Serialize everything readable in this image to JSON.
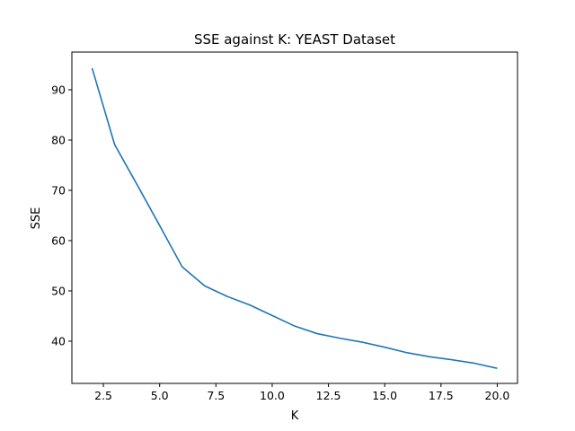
{
  "chart_data": {
    "type": "line",
    "title": "SSE against K: YEAST Dataset",
    "xlabel": "K",
    "ylabel": "SSE",
    "xlim": [
      1.1,
      20.9
    ],
    "ylim": [
      31.6,
      97.5
    ],
    "xticks": [
      2.5,
      5.0,
      7.5,
      10.0,
      12.5,
      15.0,
      17.5,
      20.0
    ],
    "xtick_labels": [
      "2.5",
      "5.0",
      "7.5",
      "10.0",
      "12.5",
      "15.0",
      "17.5",
      "20.0"
    ],
    "yticks": [
      40,
      50,
      60,
      70,
      80,
      90
    ],
    "ytick_labels": [
      "40",
      "50",
      "60",
      "70",
      "80",
      "90"
    ],
    "grid": false,
    "series": [
      {
        "color": "#1f77b4",
        "x": [
          2,
          3,
          4,
          5,
          6,
          7,
          8,
          9,
          10,
          11,
          12,
          13,
          14,
          15,
          16,
          17,
          18,
          19,
          20
        ],
        "y": [
          94.3,
          79.1,
          71.1,
          63.0,
          54.8,
          51.0,
          48.9,
          47.2,
          45.1,
          43.0,
          41.5,
          40.6,
          39.8,
          38.8,
          37.7,
          36.9,
          36.3,
          35.6,
          34.6
        ]
      }
    ]
  }
}
